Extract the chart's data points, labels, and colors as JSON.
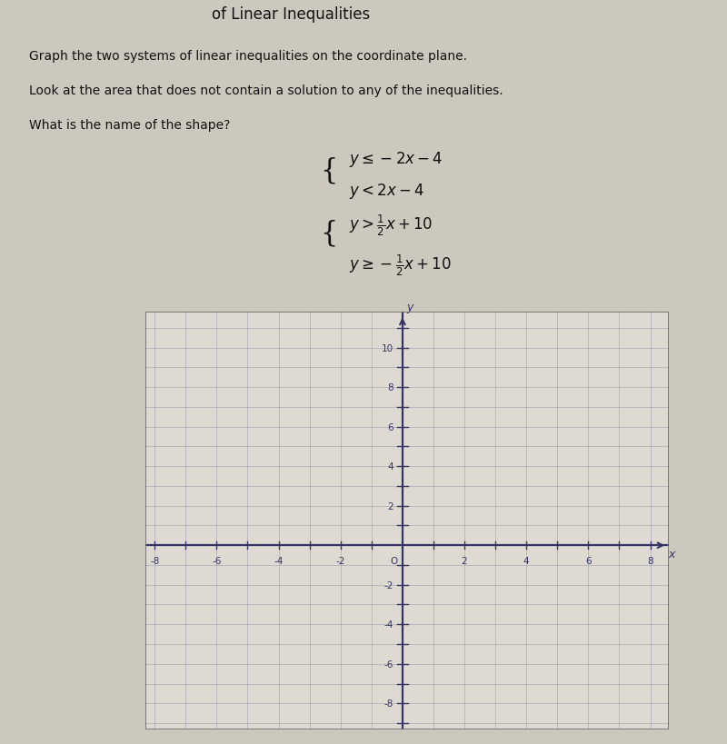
{
  "title": "of Linear Inequalities",
  "instructions": [
    "Graph the two systems of linear inequalities on the coordinate plane.",
    "Look at the area that does not contain a solution to any of the inequalities.",
    "What is the name of the shape?"
  ],
  "paper_color": "#ccc8be",
  "grid_color": "#8888aa",
  "axis_color": "#333366",
  "text_color": "#111111",
  "x_min": -8,
  "x_max": 8,
  "y_min": -9,
  "y_max": 11,
  "x_ticks": [
    -8,
    -6,
    -4,
    -2,
    2,
    4,
    6,
    8
  ],
  "y_ticks": [
    -8,
    -6,
    -4,
    -2,
    2,
    4,
    6,
    8,
    10
  ]
}
